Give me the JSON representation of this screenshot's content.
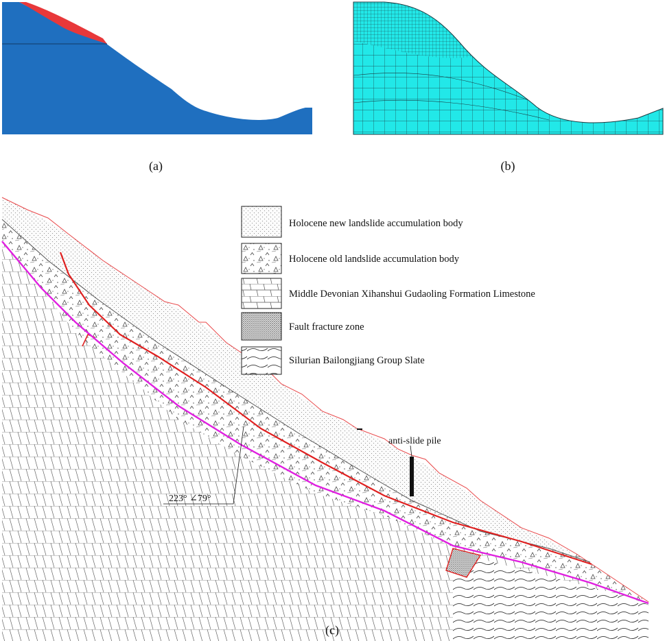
{
  "captions": {
    "a": "(a)",
    "b": "(b)",
    "c": "(c)"
  },
  "colors": {
    "model_body": "#1f6fbf",
    "landslide_layer": "#e8383a",
    "mesh_fill": "#22e8e8",
    "mesh_line": "#1a3a40",
    "sliding_surface": "#e02020",
    "bedrock_boundary": "#e020e0"
  },
  "legend": [
    {
      "pattern": "fine-dots",
      "label": "Holocene new landslide accumulation body"
    },
    {
      "pattern": "triangles",
      "label": "Holocene old landslide accumulation body"
    },
    {
      "pattern": "bricks",
      "label": "Middle Devonian Xihanshui Gudaoling Formation Limestone"
    },
    {
      "pattern": "dense-dots",
      "label": "Fault fracture zone"
    },
    {
      "pattern": "waves",
      "label": "Silurian Bailongjiang Group Slate"
    }
  ],
  "annotations": {
    "pile_label": "anti-slide pile",
    "attitude_label": "223° ∠79°"
  }
}
